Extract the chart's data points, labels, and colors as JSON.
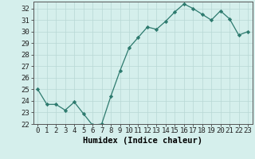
{
  "x": [
    0,
    1,
    2,
    3,
    4,
    5,
    6,
    7,
    8,
    9,
    10,
    11,
    12,
    13,
    14,
    15,
    16,
    17,
    18,
    19,
    20,
    21,
    22,
    23
  ],
  "y": [
    25.0,
    23.7,
    23.7,
    23.2,
    23.9,
    22.9,
    21.9,
    22.0,
    24.4,
    26.6,
    28.6,
    29.5,
    30.4,
    30.2,
    30.9,
    31.7,
    32.4,
    32.0,
    31.5,
    31.0,
    31.8,
    31.1,
    29.7,
    30.0
  ],
  "line_color": "#2d7a6e",
  "marker": "D",
  "marker_size": 2.2,
  "bg_color": "#d5efec",
  "grid_color": "#b8d8d4",
  "xlabel": "Humidex (Indice chaleur)",
  "ylim": [
    22,
    32.6
  ],
  "xlim": [
    -0.5,
    23.5
  ],
  "yticks": [
    22,
    23,
    24,
    25,
    26,
    27,
    28,
    29,
    30,
    31,
    32
  ],
  "xticks": [
    0,
    1,
    2,
    3,
    4,
    5,
    6,
    7,
    8,
    9,
    10,
    11,
    12,
    13,
    14,
    15,
    16,
    17,
    18,
    19,
    20,
    21,
    22,
    23
  ],
  "tick_fontsize": 6.5,
  "xlabel_fontsize": 7.5
}
